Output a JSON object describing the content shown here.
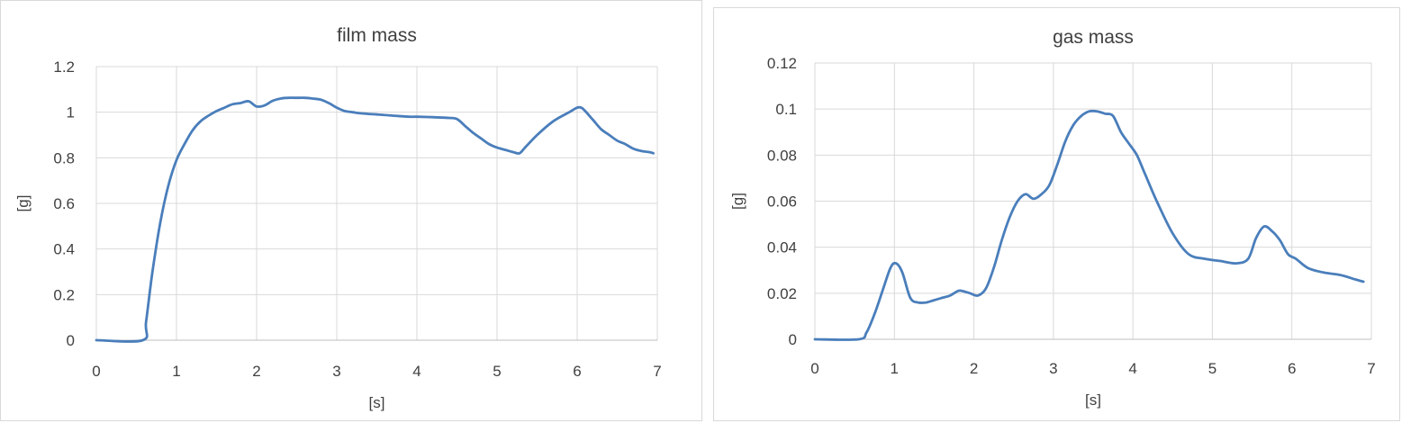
{
  "chart_data": [
    {
      "type": "line",
      "title": "film mass",
      "xlabel": "[s]",
      "ylabel": "[g]",
      "xlim": [
        0,
        7
      ],
      "ylim": [
        0,
        1.2
      ],
      "xticks": [
        "0",
        "1",
        "2",
        "3",
        "4",
        "5",
        "6",
        "7"
      ],
      "yticks": [
        "0",
        "0.2",
        "0.4",
        "0.6",
        "0.8",
        "1",
        "1.2"
      ],
      "grid": true,
      "legend": "none",
      "color": "#4a7ebb",
      "series": [
        {
          "x": [
            0,
            0.58,
            0.62,
            0.7,
            0.8,
            0.9,
            1.0,
            1.1,
            1.2,
            1.3,
            1.4,
            1.5,
            1.6,
            1.7,
            1.8,
            1.9,
            2.0,
            2.1,
            2.2,
            2.3,
            2.4,
            2.5,
            2.6,
            2.7,
            2.8,
            2.9,
            3.0,
            3.1,
            3.2,
            3.3,
            3.5,
            3.7,
            3.9,
            4.0,
            4.2,
            4.4,
            4.5,
            4.6,
            4.7,
            4.8,
            4.9,
            5.0,
            5.1,
            5.2,
            5.28,
            5.35,
            5.5,
            5.7,
            5.9,
            6.0,
            6.05,
            6.1,
            6.2,
            6.3,
            6.4,
            6.5,
            6.6,
            6.7,
            6.8,
            6.9,
            6.95
          ],
          "y": [
            0,
            0,
            0.08,
            0.3,
            0.52,
            0.68,
            0.79,
            0.86,
            0.92,
            0.96,
            0.985,
            1.005,
            1.02,
            1.035,
            1.04,
            1.048,
            1.025,
            1.03,
            1.05,
            1.06,
            1.063,
            1.063,
            1.063,
            1.06,
            1.055,
            1.04,
            1.02,
            1.005,
            1.0,
            0.995,
            0.99,
            0.985,
            0.98,
            0.98,
            0.978,
            0.975,
            0.97,
            0.94,
            0.91,
            0.885,
            0.86,
            0.845,
            0.835,
            0.825,
            0.82,
            0.845,
            0.9,
            0.96,
            1.0,
            1.02,
            1.02,
            1.005,
            0.965,
            0.925,
            0.9,
            0.875,
            0.86,
            0.84,
            0.83,
            0.825,
            0.82
          ]
        }
      ]
    },
    {
      "type": "line",
      "title": "gas mass",
      "xlabel": "[s]",
      "ylabel": "[g]",
      "xlim": [
        0,
        7
      ],
      "ylim": [
        0,
        0.12
      ],
      "xticks": [
        "0",
        "1",
        "2",
        "3",
        "4",
        "5",
        "6",
        "7"
      ],
      "yticks": [
        "0",
        "0.02",
        "0.04",
        "0.06",
        "0.08",
        "0.1",
        "0.12"
      ],
      "grid": true,
      "legend": "none",
      "color": "#4a7ebb",
      "series": [
        {
          "x": [
            0,
            0.55,
            0.65,
            0.75,
            0.85,
            0.95,
            1.02,
            1.1,
            1.2,
            1.3,
            1.4,
            1.5,
            1.6,
            1.7,
            1.8,
            1.85,
            1.95,
            2.05,
            2.15,
            2.25,
            2.35,
            2.45,
            2.55,
            2.65,
            2.75,
            2.85,
            2.95,
            3.05,
            3.15,
            3.25,
            3.35,
            3.45,
            3.55,
            3.65,
            3.75,
            3.85,
            3.95,
            4.05,
            4.15,
            4.3,
            4.5,
            4.7,
            4.9,
            5.1,
            5.3,
            5.45,
            5.55,
            5.65,
            5.75,
            5.85,
            5.95,
            6.05,
            6.2,
            6.4,
            6.6,
            6.8,
            6.9
          ],
          "y": [
            0,
            0,
            0.003,
            0.011,
            0.021,
            0.031,
            0.033,
            0.029,
            0.018,
            0.016,
            0.016,
            0.017,
            0.018,
            0.019,
            0.021,
            0.021,
            0.02,
            0.019,
            0.022,
            0.031,
            0.043,
            0.053,
            0.06,
            0.063,
            0.061,
            0.063,
            0.067,
            0.076,
            0.086,
            0.093,
            0.097,
            0.099,
            0.099,
            0.098,
            0.097,
            0.09,
            0.085,
            0.08,
            0.072,
            0.06,
            0.046,
            0.037,
            0.035,
            0.034,
            0.033,
            0.035,
            0.044,
            0.049,
            0.047,
            0.043,
            0.037,
            0.035,
            0.031,
            0.029,
            0.028,
            0.026,
            0.025
          ]
        }
      ]
    }
  ]
}
